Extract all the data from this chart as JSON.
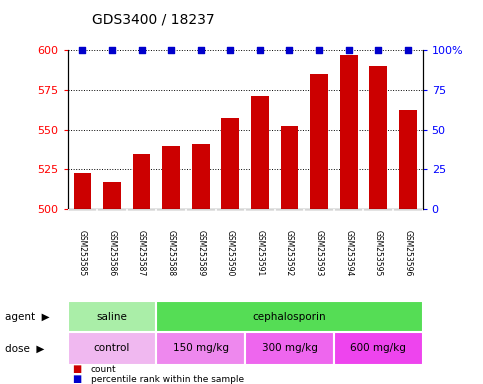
{
  "title": "GDS3400 / 18237",
  "samples": [
    "GSM253585",
    "GSM253586",
    "GSM253587",
    "GSM253588",
    "GSM253589",
    "GSM253590",
    "GSM253591",
    "GSM253592",
    "GSM253593",
    "GSM253594",
    "GSM253595",
    "GSM253596"
  ],
  "count_values": [
    523,
    517,
    535,
    540,
    541,
    557,
    571,
    552,
    585,
    597,
    590,
    562
  ],
  "bar_color": "#cc0000",
  "dot_color": "#0000cc",
  "ylim_left": [
    500,
    600
  ],
  "ylim_right": [
    0,
    100
  ],
  "yticks_left": [
    500,
    525,
    550,
    575,
    600
  ],
  "yticks_right": [
    0,
    25,
    50,
    75,
    100
  ],
  "agent_labels": [
    {
      "label": "saline",
      "start": 0,
      "end": 3,
      "color": "#aaeea8"
    },
    {
      "label": "cephalosporin",
      "start": 3,
      "end": 12,
      "color": "#55dd55"
    }
  ],
  "dose_labels": [
    {
      "label": "control",
      "start": 0,
      "end": 3,
      "color": "#f0b8f0"
    },
    {
      "label": "150 mg/kg",
      "start": 3,
      "end": 6,
      "color": "#ee88ee"
    },
    {
      "label": "300 mg/kg",
      "start": 6,
      "end": 9,
      "color": "#ee66ee"
    },
    {
      "label": "600 mg/kg",
      "start": 9,
      "end": 12,
      "color": "#ee44ee"
    }
  ],
  "legend_count_color": "#cc0000",
  "legend_dot_color": "#0000cc",
  "background_color": "#ffffff",
  "tick_label_area_color": "#cccccc",
  "title_fontsize": 10,
  "axis_fontsize": 8,
  "label_fontsize": 7.5,
  "sample_fontsize": 5.5
}
